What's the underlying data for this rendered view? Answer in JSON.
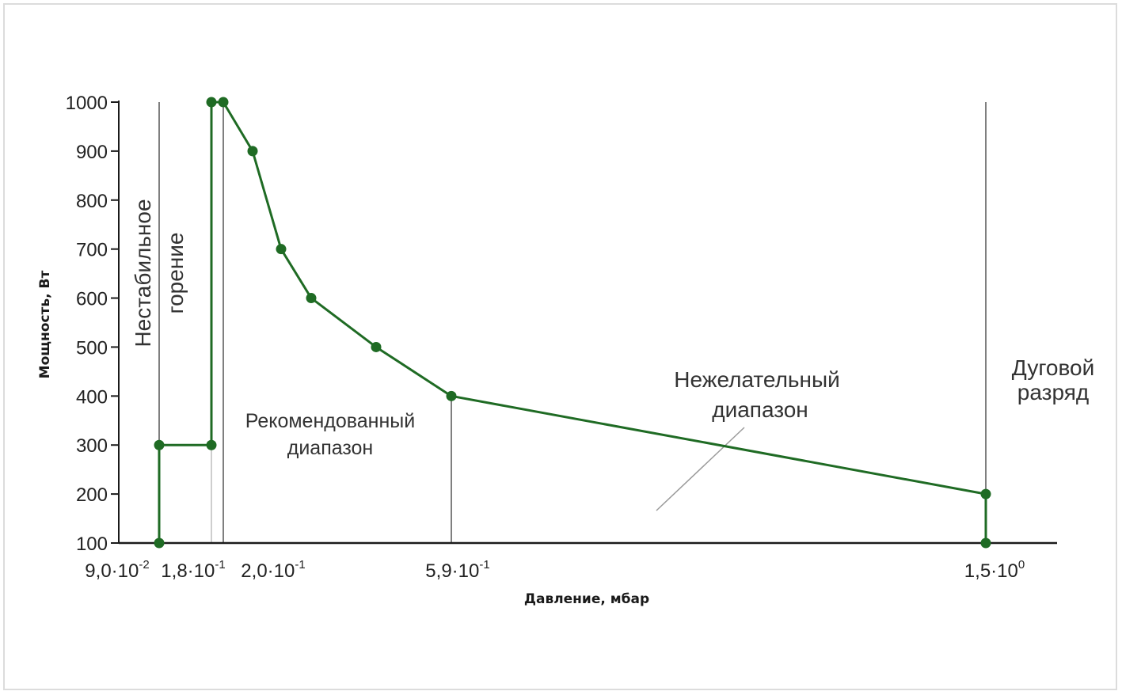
{
  "chart_data": {
    "type": "line",
    "title": "",
    "xlabel": "Давление, мбар",
    "ylabel": "Мощность, Вт",
    "ylim": [
      100,
      1000
    ],
    "y_ticks": [
      "100",
      "200",
      "300",
      "400",
      "500",
      "600",
      "700",
      "800",
      "900",
      "1000"
    ],
    "x_ticks": [
      {
        "base": "9,0·10",
        "exp": "-2"
      },
      {
        "base": "1,8·10",
        "exp": "-1"
      },
      {
        "base": "2,0·10",
        "exp": "-1"
      },
      {
        "base": "5,9·10",
        "exp": "-1"
      },
      {
        "base": "1,5·10",
        "exp": "0"
      }
    ],
    "series": [
      {
        "color": "#1f6b24",
        "points": [
          {
            "x": 0.09,
            "y": 100
          },
          {
            "x": 0.09,
            "y": 300
          },
          {
            "x": 0.18,
            "y": 300
          },
          {
            "x": 0.18,
            "y": 1000
          },
          {
            "x": 0.2,
            "y": 1000
          },
          {
            "x": 0.25,
            "y": 900
          },
          {
            "x": 0.3,
            "y": 700
          },
          {
            "x": 0.35,
            "y": 600
          },
          {
            "x": 0.46,
            "y": 500
          },
          {
            "x": 0.59,
            "y": 400
          },
          {
            "x": 1.5,
            "y": 200
          },
          {
            "x": 1.5,
            "y": 100
          }
        ]
      }
    ],
    "annotations": {
      "unstable_line1": "Нестабильное",
      "unstable_line2": "горение",
      "recommended_line1": "Рекомендованный",
      "recommended_line2": "диапазон",
      "undesirable_line1": "Нежелательный",
      "undesirable_line2": "диапазон",
      "arc_line1": "Дуговой",
      "arc_line2": "разряд"
    },
    "grid": false,
    "legend": "none"
  }
}
